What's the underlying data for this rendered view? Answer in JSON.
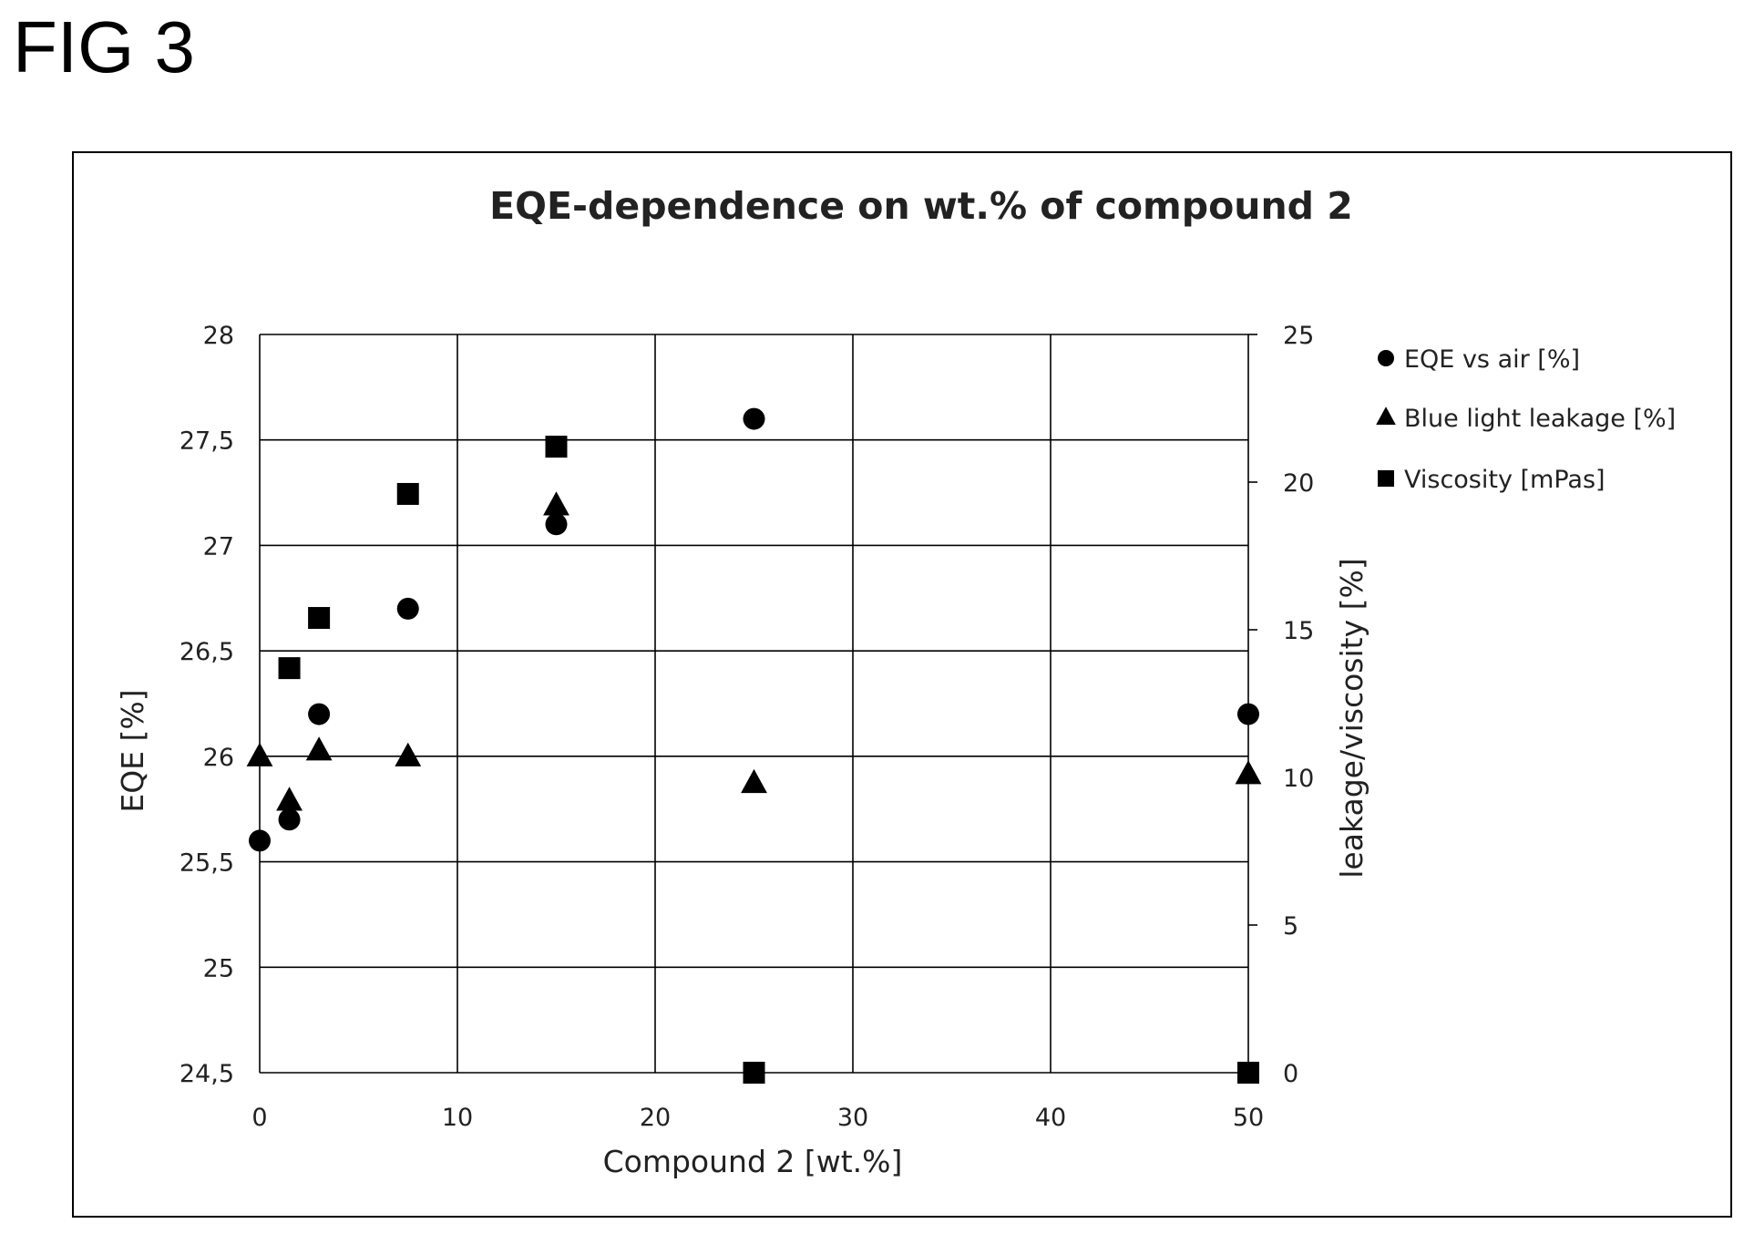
{
  "figure_label": "FIG 3",
  "chart_data": {
    "type": "scatter",
    "title": "EQE-dependence on wt.% of compound 2",
    "xlabel": "Compound 2 [wt.%]",
    "ylabel": "EQE [%]",
    "y2label": "leakage/viscosity [%]",
    "xlim": [
      0,
      50
    ],
    "ylim": [
      24.5,
      28
    ],
    "y2lim": [
      0,
      25
    ],
    "x_ticks": [
      "0",
      "10",
      "20",
      "30",
      "40",
      "50"
    ],
    "y_ticks": [
      "24,5",
      "25",
      "25,5",
      "26",
      "26,5",
      "27",
      "27,5",
      "28"
    ],
    "y2_ticks": [
      "0",
      "5",
      "10",
      "15",
      "20",
      "25"
    ],
    "grid": true,
    "legend_position": "right",
    "series": [
      {
        "name": "EQE vs air [%]",
        "marker": "circle",
        "axis": "left",
        "x": [
          0,
          1.5,
          3,
          7.5,
          15,
          25,
          50
        ],
        "y": [
          25.6,
          25.7,
          26.2,
          26.7,
          27.1,
          27.6,
          26.2
        ]
      },
      {
        "name": "Blue light leakage [%]",
        "marker": "triangle",
        "axis": "right",
        "x": [
          0,
          1.5,
          3,
          7.5,
          15,
          25,
          50
        ],
        "y": [
          10.7,
          9.2,
          10.9,
          10.7,
          19.2,
          9.8,
          10.1
        ]
      },
      {
        "name": "Viscosity [mPas]",
        "marker": "square",
        "axis": "right",
        "x": [
          1.5,
          3,
          7.5,
          15,
          25,
          50
        ],
        "y": [
          13.7,
          15.4,
          19.6,
          21.2,
          0,
          0
        ]
      }
    ],
    "colors": {
      "marker": "#000000",
      "grid": "#000000",
      "text": "#222222"
    }
  }
}
